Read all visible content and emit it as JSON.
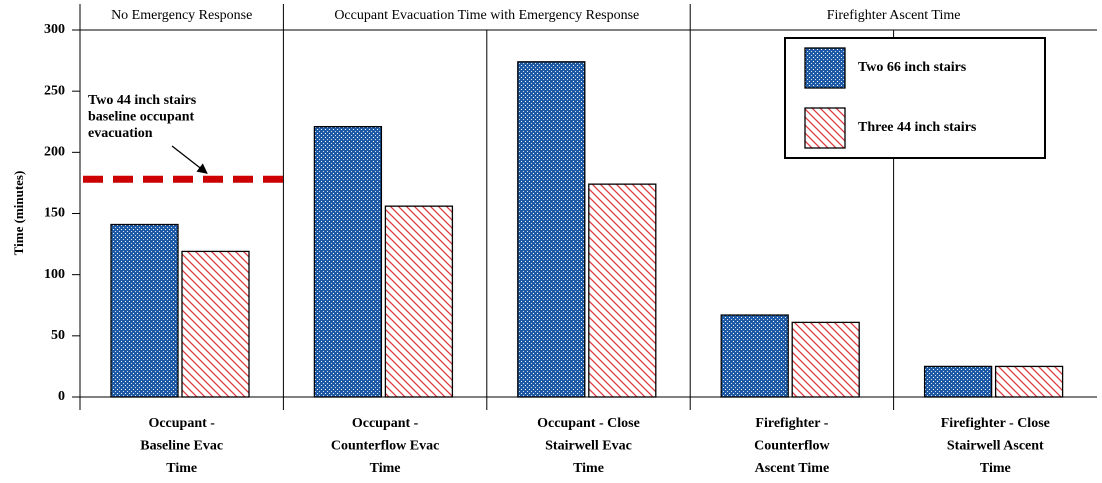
{
  "chart_data": {
    "type": "bar",
    "y_label": "Time (minutes)",
    "groups": [
      {
        "label": "No Emergency Response",
        "size": 1
      },
      {
        "label": "Occupant Evacuation Time with Emergency Response",
        "size": 2
      },
      {
        "label": "Firefighter Ascent Time",
        "size": 2
      }
    ],
    "categories": [
      [
        "Occupant -",
        "Baseline Evac",
        "Time"
      ],
      [
        "Occupant -",
        "Counterflow Evac",
        "Time"
      ],
      [
        "Occupant - Close",
        "Stairwell Evac",
        "Time"
      ],
      [
        "Firefighter -",
        "Counterflow",
        "Ascent Time"
      ],
      [
        "Firefighter - Close",
        "Stairwell Ascent",
        "Time"
      ]
    ],
    "series": [
      {
        "name": "Two 66 inch stairs",
        "color": "#1f5aa6",
        "pattern": "dots",
        "values": [
          141,
          221,
          274,
          67,
          25
        ]
      },
      {
        "name": "Three 44 inch stairs",
        "color": "#e0393e",
        "pattern": "hatch",
        "values": [
          119,
          156,
          174,
          61,
          25
        ]
      }
    ],
    "reference_line": {
      "value": 178,
      "color": "#cc0000",
      "category": 0,
      "label": [
        "Two 44 inch stairs",
        "baseline occupant",
        "evacuation"
      ]
    },
    "ylim": [
      0,
      300
    ],
    "yticks": [
      0,
      50,
      100,
      150,
      200,
      250,
      300
    ],
    "legend": "top-right"
  }
}
